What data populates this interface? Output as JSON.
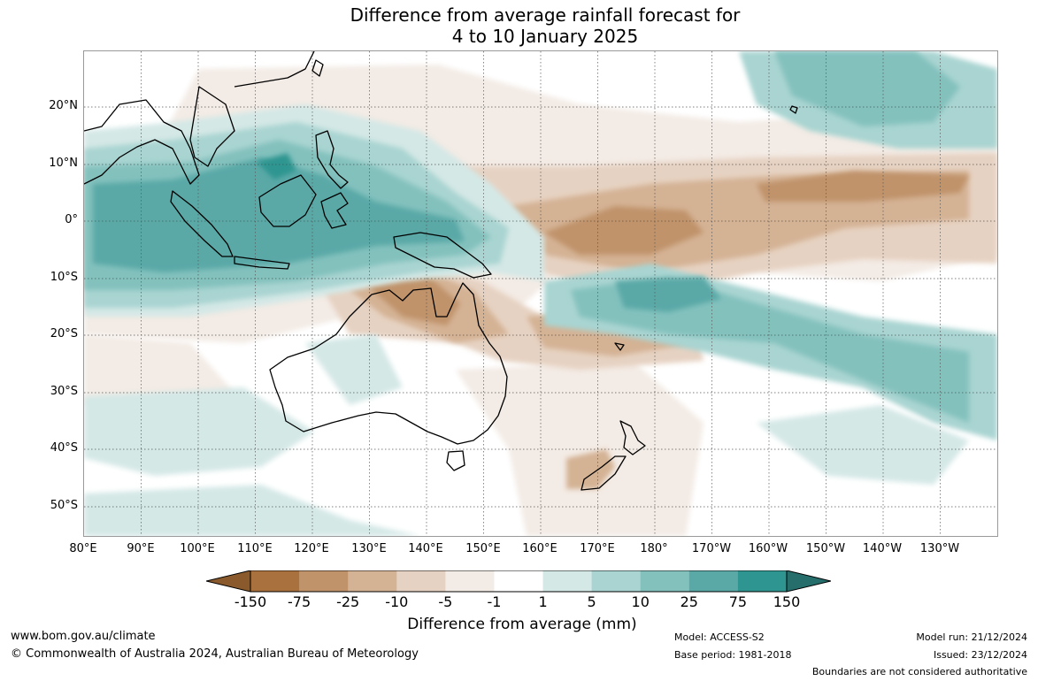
{
  "title": {
    "line1": "Difference from average rainfall forecast for",
    "line2": "4 to 10 January 2025"
  },
  "map": {
    "lat_labels": [
      "20°N",
      "10°N",
      "0°",
      "10°S",
      "20°S",
      "30°S",
      "40°S",
      "50°S"
    ],
    "lon_labels": [
      "80°E",
      "90°E",
      "100°E",
      "110°E",
      "120°E",
      "130°E",
      "140°E",
      "150°E",
      "160°E",
      "170°E",
      "180°",
      "170°W",
      "160°W",
      "150°W",
      "140°W",
      "130°W"
    ],
    "colors": {
      "dry_150": "#a8713d",
      "dry_75": "#c0936a",
      "dry_25": "#d4b294",
      "dry_10": "#e6d2c2",
      "dry_5": "#f3ebe5",
      "neutral": "#ffffff",
      "wet_5": "#d4e8e6",
      "wet_10": "#a9d4d1",
      "wet_25": "#83c1bd",
      "wet_75": "#5aa9a7",
      "wet_150": "#2f9590",
      "coast": "#000000",
      "grid": "#555555"
    }
  },
  "colorbar": {
    "ticks": [
      "-150",
      "-75",
      "-25",
      "-10",
      "-5",
      "-1",
      "1",
      "5",
      "10",
      "25",
      "75",
      "150"
    ],
    "title": "Difference from average (mm)",
    "colors": [
      "#a8713d",
      "#c0936a",
      "#d4b294",
      "#e6d2c2",
      "#f3ebe5",
      "#ffffff",
      "#d4e8e6",
      "#a9d4d1",
      "#83c1bd",
      "#5aa9a7",
      "#2f9590"
    ],
    "end_low": "#8a5a2c",
    "end_high": "#256e6b"
  },
  "footer": {
    "website": "www.bom.gov.au/climate",
    "copyright": "© Commonwealth of Australia 2024, Australian Bureau of Meteorology",
    "model": "Model: ACCESS-S2",
    "base_period": "Base period: 1981-2018",
    "model_run": "Model run: 21/12/2024",
    "issued": "Issued: 23/12/2024",
    "disclaimer": "Boundaries are not considered authoritative"
  }
}
